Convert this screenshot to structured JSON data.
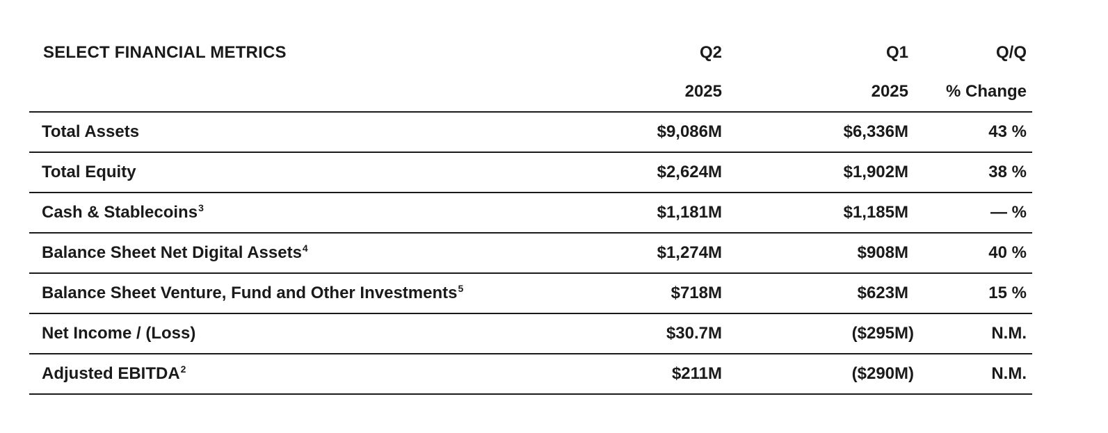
{
  "table": {
    "title": "SELECT FINANCIAL METRICS",
    "columns": [
      {
        "line1": "Q2",
        "line2": "2025"
      },
      {
        "line1": "Q1",
        "line2": "2025"
      },
      {
        "line1": "Q/Q",
        "line2": "% Change"
      }
    ],
    "rows": [
      {
        "label": "Total Assets",
        "footnote": "",
        "q2_2025": "$9,086M",
        "q1_2025": "$6,336M",
        "qq_change": "43 %"
      },
      {
        "label": "Total Equity",
        "footnote": "",
        "q2_2025": "$2,624M",
        "q1_2025": "$1,902M",
        "qq_change": "38 %"
      },
      {
        "label": "Cash & Stablecoins",
        "footnote": "3",
        "q2_2025": "$1,181M",
        "q1_2025": "$1,185M",
        "qq_change": "— %"
      },
      {
        "label": "Balance Sheet Net Digital Assets",
        "footnote": "4",
        "q2_2025": "$1,274M",
        "q1_2025": "$908M",
        "qq_change": "40 %"
      },
      {
        "label": "Balance Sheet Venture, Fund and Other Investments",
        "footnote": "5",
        "q2_2025": "$718M",
        "q1_2025": "$623M",
        "qq_change": "15 %"
      },
      {
        "label": "Net Income / (Loss)",
        "footnote": "",
        "q2_2025": "$30.7M",
        "q1_2025": "($295M)",
        "qq_change": "N.M."
      },
      {
        "label": "Adjusted EBITDA",
        "footnote": "2",
        "q2_2025": "$211M",
        "q1_2025": "($290M)",
        "qq_change": "N.M."
      }
    ]
  }
}
